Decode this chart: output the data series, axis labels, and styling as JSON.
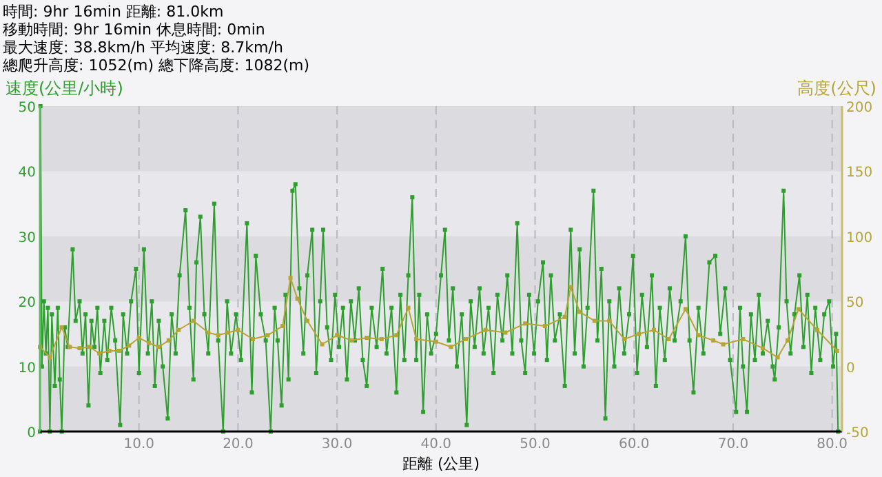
{
  "chart_data": {
    "type": "line",
    "annotations": [
      "時間: 9hr 16min  距離: 81.0km",
      "移動時間: 9hr 16min  休息時間: 0min",
      "最大速度: 38.8km/h  平均速度: 8.7km/h",
      "總爬升高度: 1052(m)  總下降高度: 1082(m)"
    ],
    "xlabel": "距離 (公里)",
    "ylabel": "速度(公里/小時)",
    "y2label": "高度(公尺)",
    "xlim": [
      0,
      81
    ],
    "ylim": [
      0,
      50
    ],
    "y2lim": [
      -50,
      200
    ],
    "xticks": [
      {
        "value": 10,
        "label": "10.0"
      },
      {
        "value": 20,
        "label": "20.0"
      },
      {
        "value": 30,
        "label": "30.0"
      },
      {
        "value": 40,
        "label": "40.0"
      },
      {
        "value": 50,
        "label": "50.0"
      },
      {
        "value": 60,
        "label": "60.0"
      },
      {
        "value": 70,
        "label": "70.0"
      },
      {
        "value": 80,
        "label": "80.0"
      }
    ],
    "yticks": [
      0,
      10,
      20,
      30,
      40,
      50
    ],
    "y2ticks": [
      -50,
      0,
      50,
      100,
      150,
      200
    ],
    "grid": true,
    "series": [
      {
        "color": "#2e9e2e",
        "marker": "square",
        "x": [
          0,
          0.05,
          0.2,
          0.4,
          0.6,
          0.8,
          1.0,
          1.2,
          1.5,
          1.8,
          2.0,
          2.2,
          2.5,
          2.8,
          3.3,
          3.6,
          4.0,
          4.3,
          4.6,
          4.9,
          5.2,
          5.5,
          5.8,
          6.1,
          6.5,
          6.8,
          7.2,
          7.6,
          8.1,
          8.4,
          8.8,
          9.2,
          9.7,
          10.0,
          10.5,
          10.9,
          11.3,
          11.6,
          12.0,
          12.4,
          12.9,
          13.3,
          13.7,
          14.1,
          14.7,
          15.1,
          15.5,
          15.8,
          16.2,
          16.6,
          17.0,
          17.6,
          18.0,
          18.5,
          18.9,
          19.3,
          19.8,
          20.3,
          20.9,
          21.4,
          21.8,
          22.3,
          22.8,
          23.3,
          23.7,
          24.0,
          24.4,
          24.8,
          25.1,
          25.5,
          25.8,
          26.2,
          26.6,
          27.0,
          27.5,
          27.9,
          28.3,
          28.6,
          29.0,
          29.4,
          29.8,
          30.2,
          30.6,
          31.0,
          31.4,
          31.8,
          32.2,
          32.6,
          33.0,
          33.5,
          34.0,
          34.6,
          35.0,
          35.5,
          36.0,
          36.4,
          36.8,
          37.2,
          37.6,
          38.0,
          38.3,
          38.7,
          39.1,
          39.5,
          40.0,
          40.5,
          40.9,
          41.3,
          41.7,
          42.1,
          42.6,
          43.1,
          43.5,
          43.9,
          44.4,
          44.8,
          45.3,
          45.8,
          46.2,
          46.7,
          47.2,
          47.7,
          48.2,
          48.6,
          49.0,
          49.4,
          49.9,
          50.3,
          50.8,
          51.2,
          51.6,
          52.0,
          52.5,
          53.0,
          53.6,
          54.0,
          54.5,
          54.9,
          55.3,
          55.9,
          56.3,
          56.7,
          57.1,
          57.5,
          58.0,
          58.5,
          59.0,
          59.5,
          59.9,
          60.3,
          60.8,
          61.3,
          61.8,
          62.2,
          62.6,
          63.1,
          63.6,
          64.1,
          64.7,
          65.2,
          65.6,
          66.0,
          66.5,
          67.0,
          67.6,
          68.2,
          68.7,
          69.2,
          69.7,
          70.3,
          70.7,
          71.0,
          71.4,
          71.8,
          72.2,
          72.6,
          73.0,
          73.5,
          74.0,
          74.2,
          74.6,
          75.1,
          75.4,
          75.8,
          76.2,
          76.7,
          77.1,
          77.5,
          77.9,
          78.3,
          78.8,
          79.2,
          79.7,
          80.1,
          80.4,
          80.6
        ],
        "values": [
          0,
          50,
          10,
          20,
          12,
          19,
          0,
          18,
          7,
          19,
          8,
          0,
          16,
          13,
          28,
          17,
          20,
          12,
          18,
          4,
          17,
          13,
          19,
          9,
          17,
          11,
          19,
          14,
          1,
          18,
          12,
          20,
          25,
          9,
          28,
          12,
          20,
          7,
          17,
          10,
          2,
          18,
          12,
          24,
          34,
          19,
          8,
          26,
          33,
          18,
          12,
          35,
          14,
          0,
          20,
          12,
          18,
          11,
          32,
          6,
          27,
          18,
          14,
          0,
          19,
          14,
          4,
          21,
          8,
          37,
          38,
          22,
          12,
          24,
          31,
          9,
          20,
          31,
          16,
          11,
          21,
          13,
          19,
          8,
          20,
          14,
          22,
          11,
          7,
          19,
          13,
          25,
          12,
          19,
          6,
          21,
          11,
          24,
          36,
          11,
          21,
          3,
          18,
          12,
          15,
          24,
          31,
          14,
          22,
          10,
          18,
          1,
          20,
          13,
          22,
          12,
          19,
          9,
          21,
          14,
          24,
          12,
          32,
          14,
          9,
          21,
          12,
          20,
          26,
          11,
          24,
          14,
          18,
          7,
          31,
          12,
          28,
          10,
          19,
          37,
          14,
          25,
          2,
          20,
          10,
          22,
          12,
          18,
          27,
          9,
          21,
          13,
          24,
          7,
          19,
          11,
          22,
          14,
          20,
          30,
          14,
          6,
          19,
          12,
          26,
          27,
          15,
          22,
          11,
          3,
          19,
          10,
          3,
          18,
          11,
          21,
          12,
          17,
          10,
          8,
          16,
          37,
          20,
          12,
          18,
          24,
          13,
          21,
          9,
          19,
          11,
          18,
          20,
          10,
          15,
          0
        ]
      },
      {
        "color": "#b5a536",
        "marker": "square",
        "axis": "y2",
        "x": [
          0,
          1.0,
          2.2,
          3.0,
          4.0,
          5.0,
          6.0,
          7.0,
          8.0,
          9.0,
          10.0,
          11.0,
          12.0,
          13.0,
          14.0,
          15.5,
          17.0,
          18.0,
          19.0,
          20.0,
          21.5,
          23.0,
          24.5,
          25.3,
          26.0,
          27.0,
          28.5,
          30.0,
          31.5,
          33.0,
          34.5,
          36.0,
          37.2,
          38.0,
          40.0,
          41.5,
          43.0,
          45.0,
          47.0,
          49.0,
          51.0,
          53.0,
          53.6,
          54.5,
          56.0,
          57.5,
          59.0,
          60.5,
          62.0,
          63.5,
          65.2,
          66.5,
          68.0,
          69.0,
          71.0,
          73.0,
          74.5,
          75.5,
          76.6,
          78.5,
          80.5
        ],
        "values": [
          15,
          7,
          30,
          15,
          14,
          15,
          10,
          12,
          12,
          16,
          22,
          18,
          15,
          20,
          28,
          35,
          26,
          24,
          26,
          28,
          21,
          24,
          31,
          68,
          52,
          35,
          17,
          24,
          20,
          22,
          21,
          24,
          45,
          21,
          19,
          15,
          21,
          28,
          26,
          33,
          31,
          38,
          61,
          42,
          35,
          35,
          21,
          25,
          28,
          21,
          44,
          24,
          20,
          17,
          21,
          14,
          7,
          20,
          44,
          28,
          12
        ]
      }
    ]
  }
}
